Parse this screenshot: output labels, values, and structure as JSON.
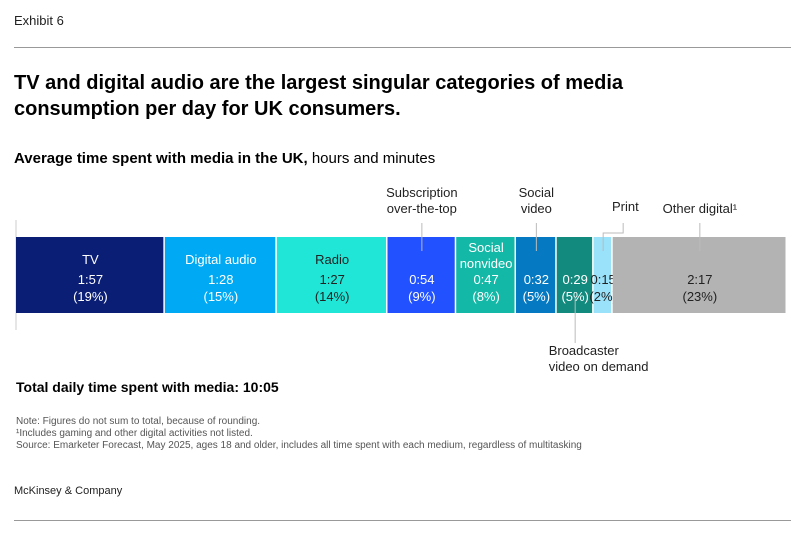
{
  "header": {
    "exhibit": "Exhibit 6",
    "title": "TV and digital audio are the largest singular categories of media consumption per day for UK consumers."
  },
  "subtitle": {
    "bold": "Average time spent with media in the UK,",
    "rest": " hours and minutes"
  },
  "chart_data": {
    "type": "stacked-bar",
    "categories": [
      "TV",
      "Digital audio",
      "Radio",
      "Subscription over-the-top",
      "Social nonvideo",
      "Social video",
      "Broadcaster video on demand",
      "Print",
      "Other digital¹"
    ],
    "values": [
      "1:57",
      "1:28",
      "1:27",
      "0:54",
      "0:47",
      "0:32",
      "0:29",
      "0:15",
      "2:17"
    ],
    "minutes": [
      117,
      88,
      87,
      54,
      47,
      32,
      29,
      15,
      137
    ],
    "percents": [
      "(19%)",
      "(15%)",
      "(14%)",
      "(9%)",
      "(8%)",
      "(5%)",
      "(5%)",
      "(2%)",
      "(23%)"
    ],
    "colors": [
      "#0a1e75",
      "#00a9f4",
      "#20e6d8",
      "#2251ff",
      "#14b8a6",
      "#0679c3",
      "#138a7e",
      "#99e2fa",
      "#b3b3b3"
    ],
    "text_colors": [
      "#fff",
      "#fff",
      "#222",
      "#fff",
      "#fff",
      "#fff",
      "#fff",
      "#222",
      "#222"
    ],
    "label_position": [
      "inside",
      "inside",
      "inside",
      "above",
      "inside",
      "above",
      "below",
      "above",
      "above"
    ]
  },
  "footer": {
    "total": "Total daily time spent with media: 10:05",
    "notes": [
      "Note: Figures do not sum to total, because of rounding.",
      "¹Includes gaming and other digital activities not listed.",
      "Source: Emarketer Forecast, May 2025, ages 18 and older, includes all time spent with each medium, regardless of multitasking"
    ],
    "brand": "McKinsey & Company"
  }
}
